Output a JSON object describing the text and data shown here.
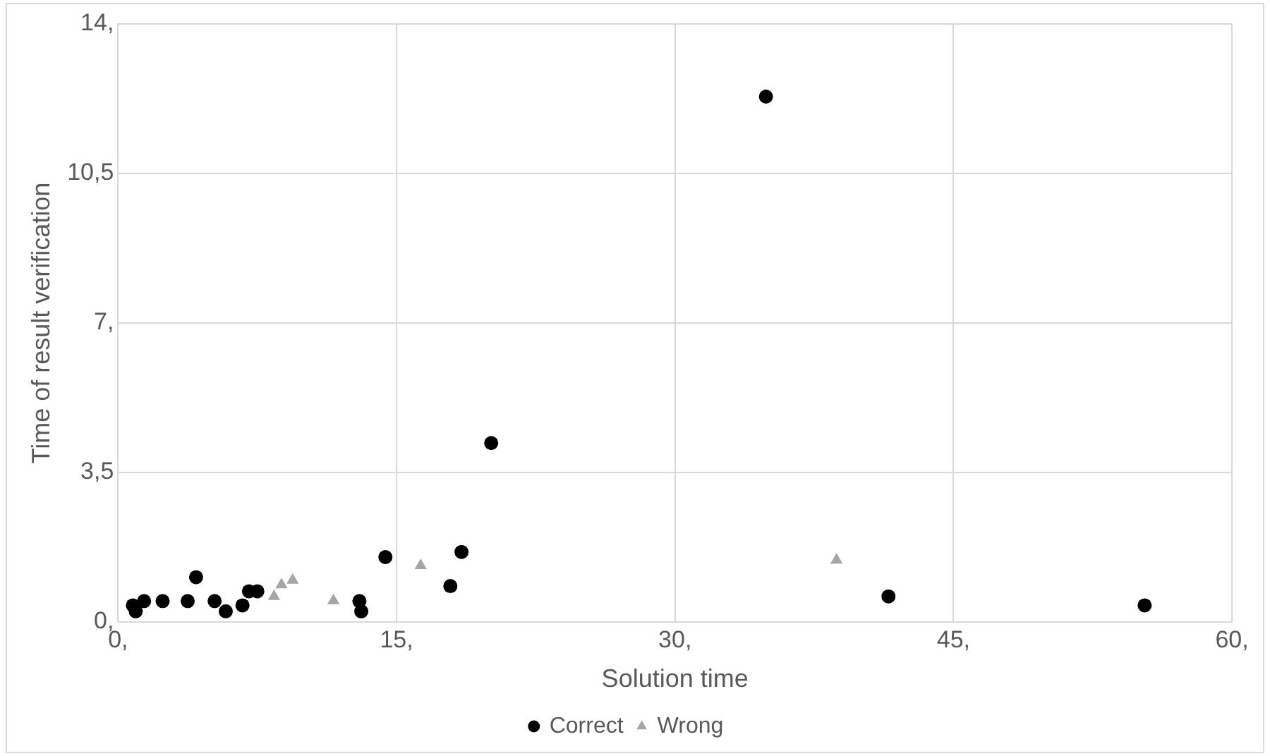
{
  "chart_data": {
    "type": "scatter",
    "xlabel": "Solution time",
    "ylabel": "Time of result verification",
    "xlim": [
      0,
      60
    ],
    "xticks": [
      {
        "value": 0,
        "label": "0,"
      },
      {
        "value": 15,
        "label": "15,"
      },
      {
        "value": 30,
        "label": "30,"
      },
      {
        "value": 45,
        "label": "45,"
      },
      {
        "value": 60,
        "label": "60,"
      }
    ],
    "ylim": [
      0,
      14
    ],
    "yticks": [
      {
        "value": 0,
        "label": "0,"
      },
      {
        "value": 3.5,
        "label": "3,5"
      },
      {
        "value": 7,
        "label": "7,"
      },
      {
        "value": 10.5,
        "label": "10,5"
      },
      {
        "value": 14,
        "label": "14,"
      }
    ],
    "grid": true,
    "legend": "bottom",
    "series": [
      {
        "name": "Correct",
        "color": "#000000",
        "marker": "circle",
        "x": [
          0.8,
          0.95,
          1.4,
          2.4,
          3.75,
          4.2,
          5.2,
          5.8,
          6.7,
          7.05,
          7.5,
          13,
          13.1,
          14.4,
          17.9,
          18.5,
          20.1,
          34.9,
          41.5,
          55.3
        ],
        "values": [
          0.39,
          0.25,
          0.49,
          0.49,
          0.49,
          1.05,
          0.49,
          0.25,
          0.39,
          0.72,
          0.72,
          0.49,
          0.25,
          1.52,
          0.84,
          1.64,
          4.19,
          12.3,
          0.6,
          0.39
        ]
      },
      {
        "name": "Wrong",
        "color": "#a5a5a5",
        "marker": "triangle",
        "x": [
          8.4,
          8.8,
          9.4,
          11.6,
          16.3,
          38.7
        ],
        "values": [
          0.6,
          0.87,
          0.98,
          0.5,
          1.32,
          1.45
        ]
      }
    ]
  }
}
